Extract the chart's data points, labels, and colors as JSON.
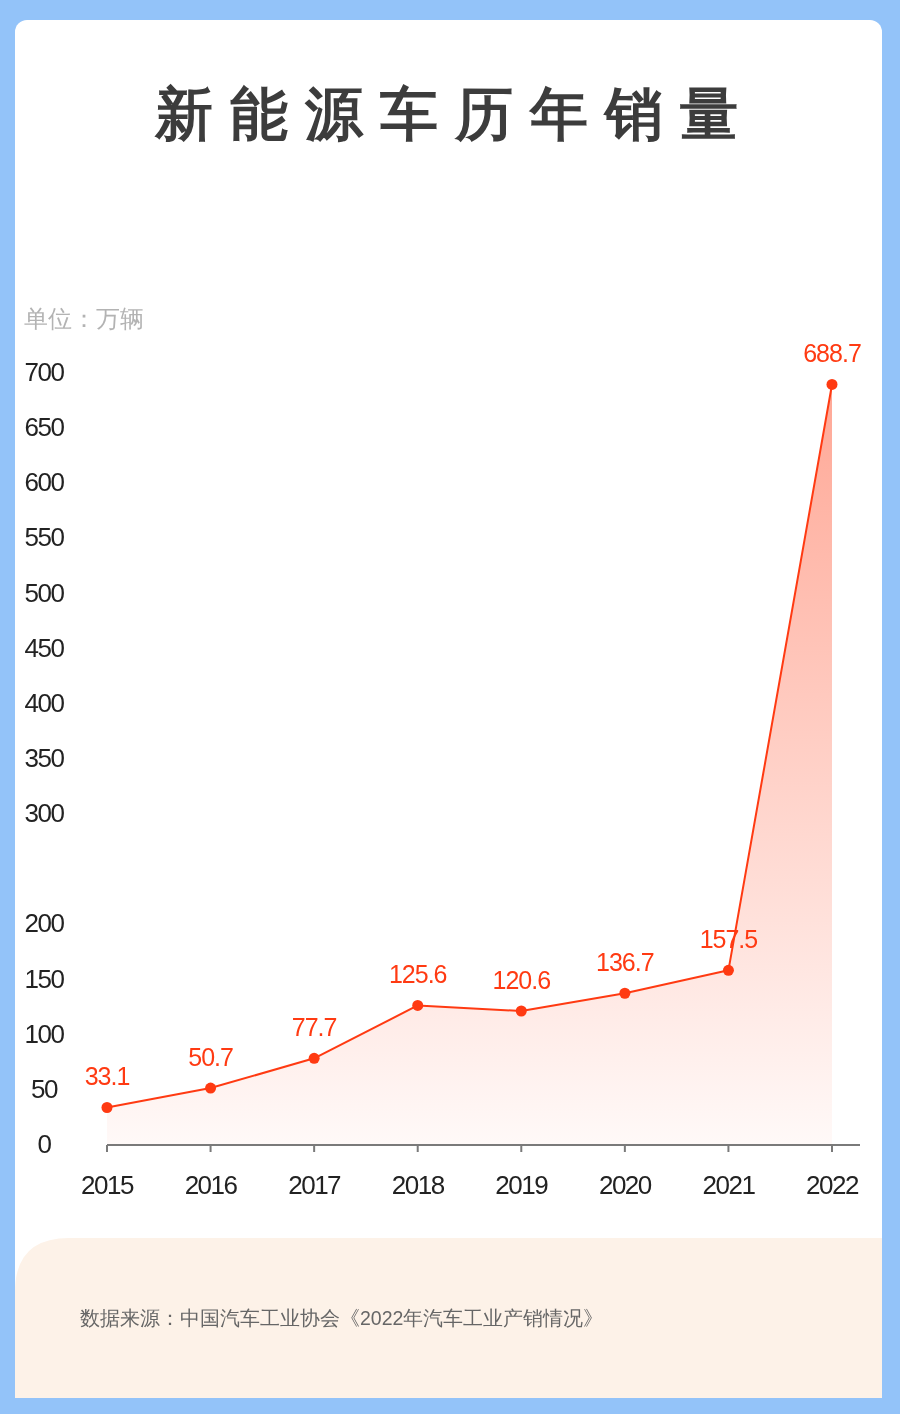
{
  "chart_data": {
    "type": "area",
    "title": "新能源车历年销量",
    "ylabel": "单位：万辆",
    "categories": [
      "2015",
      "2016",
      "2017",
      "2018",
      "2019",
      "2020",
      "2021",
      "2022"
    ],
    "values": [
      33.1,
      50.7,
      77.7,
      125.6,
      120.6,
      136.7,
      157.5,
      688.7
    ],
    "color": "#ff3a12",
    "ylim": [
      0,
      700
    ],
    "yticks": [
      0,
      50,
      100,
      150,
      200,
      300,
      350,
      400,
      450,
      500,
      550,
      600,
      650,
      700
    ],
    "marker": "circle",
    "line_style": "solid",
    "data_labels": true,
    "annotations": [
      "数据来源：中国汽车工业协会《2022年汽车工业产销情况》"
    ]
  }
}
